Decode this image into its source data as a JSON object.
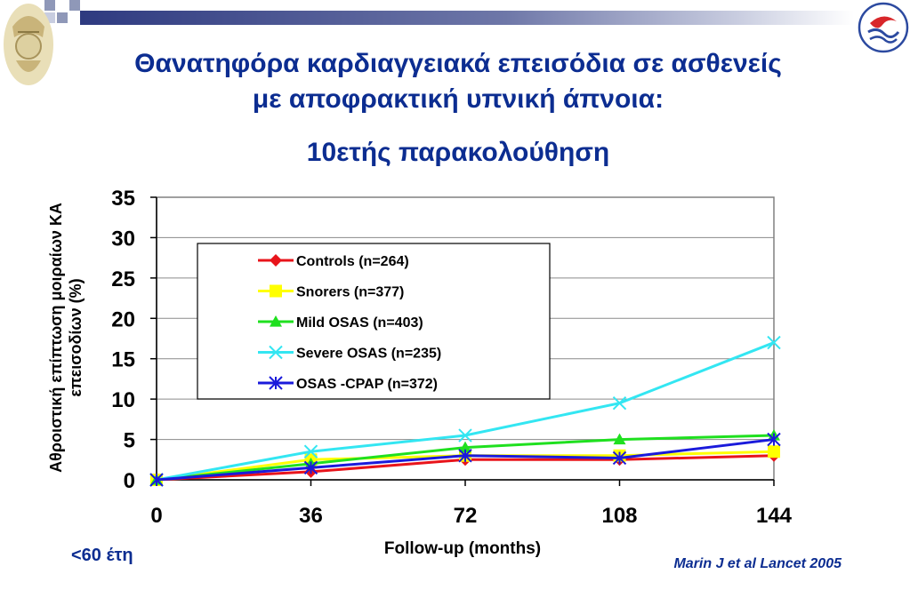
{
  "title": {
    "line1": "Θανατηφόρα καρδιαγγειακά επεισόδια σε ασθενείς",
    "line2": "με αποφρακτική υπνική άπνοια:",
    "line3": "10ετής παρακολούθηση"
  },
  "note": "<60 έτη",
  "citation": "Marin J et al Lancet 2005",
  "chart_data": {
    "type": "line",
    "xlabel": "Follow-up (months)",
    "ylabel_line1": "Αθροιστική επίπτωση μοιραίων ΚΑ",
    "ylabel_line2": "επεισοδίων (%)",
    "x": [
      0,
      36,
      72,
      108,
      144
    ],
    "x_ticks": [
      "0",
      "36",
      "72",
      "108",
      "144"
    ],
    "y_ticks": [
      "0",
      "5",
      "10",
      "15",
      "20",
      "25",
      "30",
      "35"
    ],
    "xlim": [
      0,
      144
    ],
    "ylim": [
      0,
      35
    ],
    "grid": "horizontal",
    "legend_position": "top-left inside plot",
    "series": [
      {
        "name": "Controls (n=264)",
        "color": "#e8141b",
        "marker": "diamond",
        "values": [
          0,
          1,
          2.5,
          2.5,
          3
        ]
      },
      {
        "name": "Snorers (n=377)",
        "color": "#ffff00",
        "marker": "square",
        "values": [
          0,
          2.5,
          3,
          3,
          3.5
        ]
      },
      {
        "name": "Mild OSAS (n=403)",
        "color": "#1fe01f",
        "marker": "triangle",
        "values": [
          0,
          2,
          4,
          5,
          5.5
        ]
      },
      {
        "name": "Severe OSAS (n=235)",
        "color": "#33e6f2",
        "marker": "x",
        "values": [
          0,
          3.5,
          5.5,
          9.5,
          17
        ]
      },
      {
        "name": "OSAS -CPAP (n=372)",
        "color": "#1a1adb",
        "marker": "star",
        "values": [
          0,
          1.5,
          3,
          2.7,
          5
        ]
      }
    ]
  }
}
